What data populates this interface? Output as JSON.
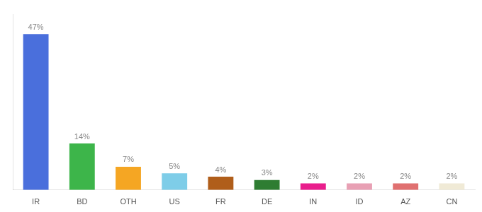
{
  "chart_data": {
    "type": "bar",
    "categories": [
      "IR",
      "BD",
      "OTH",
      "US",
      "FR",
      "DE",
      "IN",
      "ID",
      "AZ",
      "CN"
    ],
    "values": [
      47,
      14,
      7,
      5,
      4,
      3,
      2,
      2,
      2,
      2
    ],
    "value_labels": [
      "47%",
      "14%",
      "7%",
      "5%",
      "4%",
      "3%",
      "2%",
      "2%",
      "2%",
      "2%"
    ],
    "data_labels": true,
    "colors": [
      "#4a6fdc",
      "#3db54a",
      "#f5a623",
      "#7ecde8",
      "#b05e1a",
      "#2e7d32",
      "#e91e8c",
      "#e8a0b4",
      "#e07070",
      "#f0ead6"
    ],
    "ylim": [
      0,
      53
    ],
    "grid": false,
    "tick_labels": "x"
  }
}
